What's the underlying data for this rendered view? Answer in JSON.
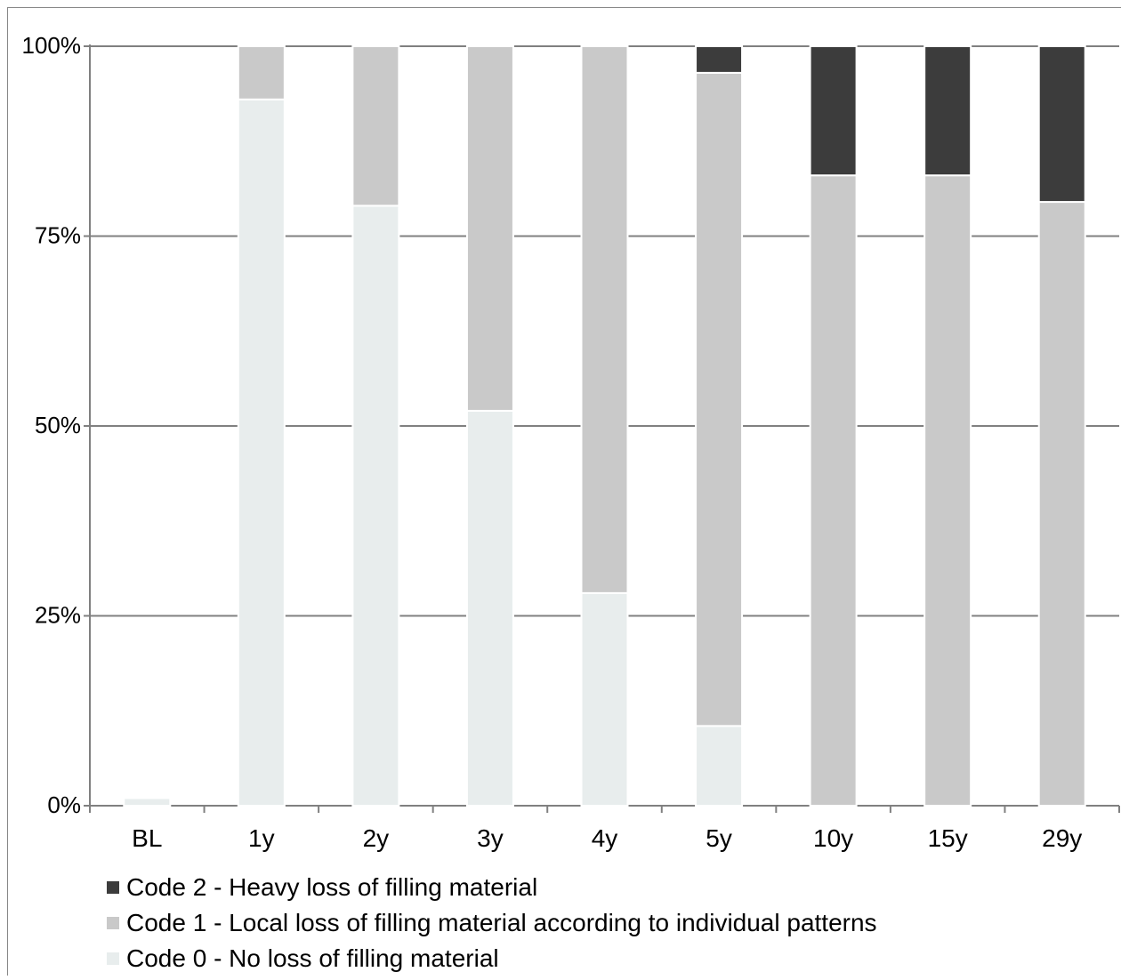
{
  "chart_data": {
    "type": "bar",
    "stacked": true,
    "categories": [
      "BL",
      "1y",
      "2y",
      "3y",
      "4y",
      "5y",
      "10y",
      "15y",
      "29y"
    ],
    "series": [
      {
        "name": "Code 0 - No loss of filling material",
        "color": "#e8eded",
        "values": [
          1,
          93,
          79,
          52,
          28,
          10.5,
          0,
          0,
          0
        ]
      },
      {
        "name": "Code 1 - Local loss of filling material according to individual patterns",
        "color": "#c9c9c9",
        "values": [
          0,
          7,
          21,
          48,
          72,
          86,
          83,
          83,
          79.5
        ]
      },
      {
        "name": "Code 2 - Heavy loss of filling material",
        "color": "#3c3c3c",
        "values": [
          0,
          0,
          0,
          0,
          0,
          3.5,
          17,
          17,
          20.5
        ]
      }
    ],
    "yticks": [
      "0%",
      "25%",
      "50%",
      "75%",
      "100%"
    ],
    "ylim": [
      0,
      100
    ],
    "grid": true,
    "legend_position": "bottom-left",
    "legend_order": [
      2,
      1,
      0
    ]
  }
}
